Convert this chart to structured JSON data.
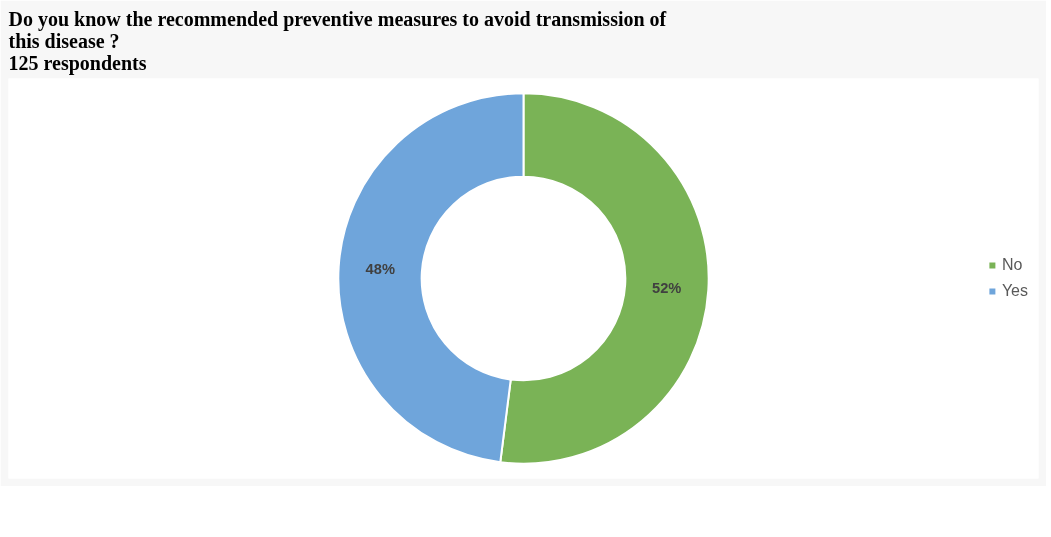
{
  "chart_data": {
    "type": "donut",
    "title": "Do you know the recommended preventive measures to avoid transmission of this disease ?",
    "subtitle": "125 respondents",
    "categories": [
      "No",
      "Yes"
    ],
    "values": [
      52,
      48
    ],
    "value_labels": [
      "52%",
      "48%"
    ],
    "colors": [
      "#7ab356",
      "#6fa5db"
    ],
    "legend": "right"
  }
}
